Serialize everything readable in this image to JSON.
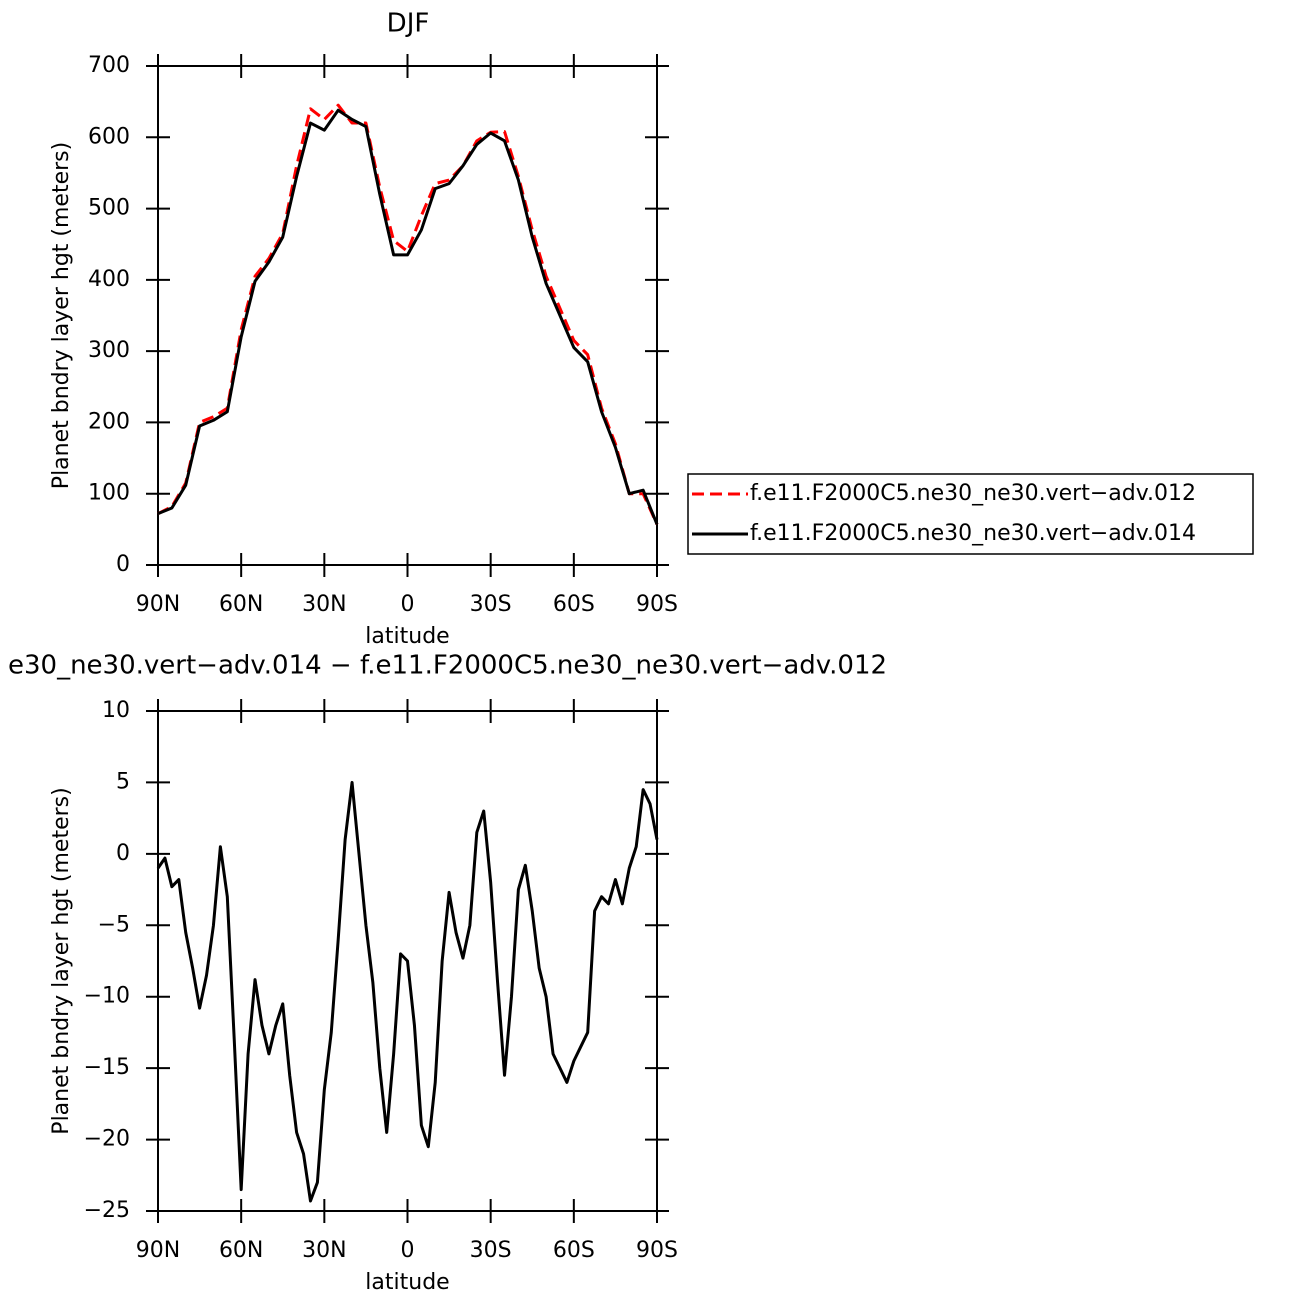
{
  "chart_data": [
    {
      "type": "line",
      "title": "DJF",
      "xlabel": "latitude",
      "ylabel": "Planet bndry layer hgt (meters)",
      "x": [
        90,
        85,
        80,
        75,
        70,
        65,
        60,
        55,
        50,
        45,
        40,
        35,
        30,
        25,
        20,
        15,
        10,
        5,
        0,
        -5,
        -10,
        -15,
        -20,
        -25,
        -30,
        -35,
        -40,
        -45,
        -50,
        -55,
        -60,
        -65,
        -70,
        -75,
        -80,
        -85,
        -90
      ],
      "series": [
        {
          "name": "f.e11.F2000C5.ne30_ne30.vert−adv.012",
          "color": "#ff0000",
          "linestyle": "dashed",
          "values": [
            72,
            82,
            115,
            200,
            208,
            220,
            330,
            405,
            430,
            465,
            560,
            640,
            625,
            645,
            620,
            620,
            530,
            455,
            440,
            490,
            535,
            540,
            560,
            595,
            607,
            608,
            545,
            470,
            405,
            360,
            315,
            295,
            220,
            170,
            100,
            100,
            57
          ]
        },
        {
          "name": "f.e11.F2000C5.ne30_ne30.vert−adv.014",
          "color": "#000000",
          "linestyle": "solid",
          "values": [
            72,
            80,
            112,
            195,
            203,
            215,
            320,
            398,
            425,
            460,
            545,
            620,
            610,
            638,
            625,
            615,
            520,
            435,
            435,
            470,
            528,
            535,
            560,
            590,
            606,
            595,
            540,
            460,
            395,
            350,
            305,
            285,
            215,
            165,
            100,
            105,
            57
          ]
        }
      ],
      "xlim": [
        90,
        -90
      ],
      "xticks": [
        {
          "value": 90,
          "label": "90N"
        },
        {
          "value": 60,
          "label": "60N"
        },
        {
          "value": 30,
          "label": "30N"
        },
        0,
        {
          "value": -30,
          "label": "30S"
        },
        {
          "value": -60,
          "label": "60S"
        },
        {
          "value": -90,
          "label": "90S"
        }
      ],
      "ylim": [
        0,
        700
      ],
      "yticks": [
        0,
        100,
        200,
        300,
        400,
        500,
        600,
        700
      ],
      "legend": "right"
    },
    {
      "type": "line",
      "title": "e30_ne30.vert−adv.014 − f.e11.F2000C5.ne30_ne30.vert−adv.012",
      "xlabel": "latitude",
      "ylabel": "Planet bndry layer hgt (meters)",
      "x": [
        90,
        87.5,
        85,
        82.5,
        80,
        77.5,
        75,
        72.5,
        70,
        67.5,
        65,
        62.5,
        60,
        57.5,
        55,
        52.5,
        50,
        47.5,
        45,
        42.5,
        40,
        37.5,
        35,
        32.5,
        30,
        27.5,
        25,
        22.5,
        20,
        17.5,
        15,
        12.5,
        10,
        7.5,
        5,
        2.5,
        0,
        -2.5,
        -5,
        -7.5,
        -10,
        -12.5,
        -15,
        -17.5,
        -20,
        -22.5,
        -25,
        -27.5,
        -30,
        -32.5,
        -35,
        -37.5,
        -40,
        -42.5,
        -45,
        -47.5,
        -50,
        -52.5,
        -55,
        -57.5,
        -60,
        -62.5,
        -65,
        -67.5,
        -70,
        -72.5,
        -75,
        -77.5,
        -80,
        -82.5,
        -85,
        -87.5,
        -90
      ],
      "series": [
        {
          "color": "#000000",
          "linestyle": "solid",
          "values": [
            -1,
            -0.3,
            -2.3,
            -1.8,
            -5.5,
            -8,
            -10.8,
            -8.5,
            -5,
            0.5,
            -3,
            -13,
            -23.5,
            -14,
            -8.8,
            -12,
            -14,
            -12,
            -10.5,
            -15.5,
            -19.5,
            -21,
            -24.3,
            -23,
            -16.5,
            -12.5,
            -6,
            1,
            5,
            0,
            -5,
            -9,
            -15,
            -19.5,
            -14,
            -7,
            -7.5,
            -12,
            -19,
            -20.5,
            -16,
            -7.5,
            -2.7,
            -5.5,
            -7.3,
            -5,
            1.5,
            3,
            -2,
            -9,
            -15.5,
            -10,
            -2.5,
            -0.8,
            -4,
            -8,
            -10,
            -14,
            -15,
            -16,
            -14.5,
            -13.5,
            -12.5,
            -4,
            -3,
            -3.5,
            -1.8,
            -3.5,
            -1,
            0.5,
            4.5,
            3.5,
            1
          ]
        }
      ],
      "xlim": [
        90,
        -90
      ],
      "xticks": [
        {
          "value": 90,
          "label": "90N"
        },
        {
          "value": 60,
          "label": "60N"
        },
        {
          "value": 30,
          "label": "30N"
        },
        0,
        {
          "value": -30,
          "label": "30S"
        },
        {
          "value": -60,
          "label": "60S"
        },
        {
          "value": -90,
          "label": "90S"
        }
      ],
      "ylim": [
        -25,
        10
      ],
      "yticks": [
        {
          "value": -25,
          "label": "−25"
        },
        {
          "value": -20,
          "label": "−20"
        },
        {
          "value": -15,
          "label": "−15"
        },
        {
          "value": -10,
          "label": "−10"
        },
        {
          "value": -5,
          "label": "−5"
        },
        0,
        5,
        10
      ]
    }
  ]
}
